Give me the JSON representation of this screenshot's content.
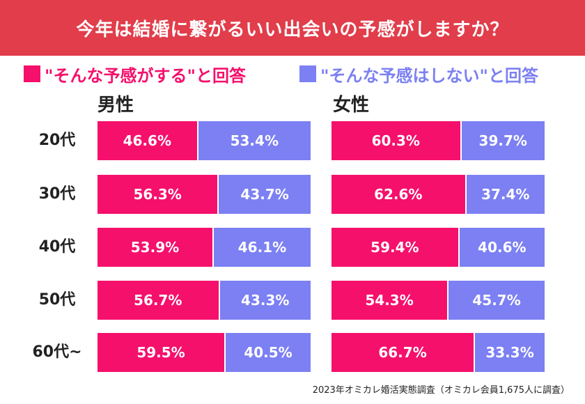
{
  "title": "今年は結婚に繋がるいい出会いの予感がしますか？",
  "legend": {
    "yes": "\"そんな予感がする\"と回答",
    "no": "\"そんな予感はしない\"と回答"
  },
  "colors": {
    "banner": "#e13d4b",
    "yes": "#f5106c",
    "no": "#7c80f2"
  },
  "source": "2023年オミカレ婚活実態調査（オミカレ会員1,675人に調査）",
  "chart_data": [
    {
      "type": "bar",
      "orientation": "horizontal-stacked-100",
      "title": "男性",
      "categories": [
        "20代",
        "30代",
        "40代",
        "50代",
        "60代~"
      ],
      "series": [
        {
          "name": "\"そんな予感がする\"と回答",
          "values": [
            46.6,
            56.3,
            53.9,
            56.7,
            59.5
          ]
        },
        {
          "name": "\"そんな予感はしない\"と回答",
          "values": [
            53.4,
            43.7,
            46.1,
            43.3,
            40.5
          ]
        }
      ],
      "unit": "%"
    },
    {
      "type": "bar",
      "orientation": "horizontal-stacked-100",
      "title": "女性",
      "categories": [
        "20代",
        "30代",
        "40代",
        "50代",
        "60代~"
      ],
      "series": [
        {
          "name": "\"そんな予感がする\"と回答",
          "values": [
            60.3,
            62.6,
            59.4,
            54.3,
            66.7
          ]
        },
        {
          "name": "\"そんな予感はしない\"と回答",
          "values": [
            39.7,
            37.4,
            40.6,
            45.7,
            33.3
          ]
        }
      ],
      "unit": "%"
    }
  ]
}
